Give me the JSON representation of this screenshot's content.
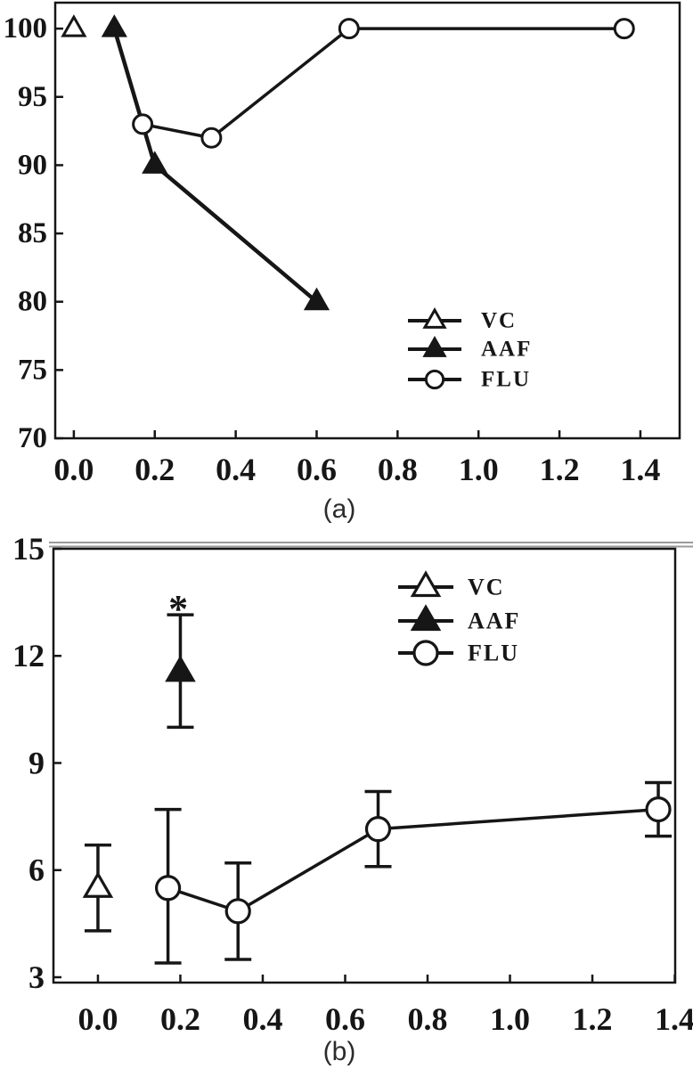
{
  "figure": {
    "description": "Two-panel dose-response line chart",
    "ink_color": "#161616",
    "background_color": "#ffffff",
    "panel_rule_color": "#9a9a9a"
  },
  "chart_data": [
    {
      "panel": "a",
      "caption": "(a)",
      "type": "line",
      "grid": false,
      "xlim": [
        -0.046,
        1.497
      ],
      "ylim": [
        70,
        101.9
      ],
      "x_tick_values": [
        0.0,
        0.2,
        0.4,
        0.6,
        0.8,
        1.0,
        1.2,
        1.4
      ],
      "x_tick_labels": [
        "0.0",
        "0.2",
        "0.4",
        "0.6",
        "0.8",
        "1.0",
        "1.2",
        "1.4"
      ],
      "y_tick_values": [
        70,
        75,
        80,
        85,
        90,
        95,
        100
      ],
      "y_tick_labels": [
        "70",
        "75",
        "80",
        "85",
        "90",
        "95",
        "100"
      ],
      "legend": {
        "position": "inside-right-middle",
        "entries": [
          "VC",
          "AAF",
          "FLU"
        ]
      },
      "series": [
        {
          "name": "VC",
          "marker": "triangle-open",
          "connect": false,
          "x": [
            0.0
          ],
          "y": [
            100
          ]
        },
        {
          "name": "AAF",
          "marker": "triangle-filled",
          "connect": true,
          "x": [
            0.1,
            0.2,
            0.6
          ],
          "y": [
            100,
            90,
            80
          ]
        },
        {
          "name": "FLU",
          "marker": "circle-open",
          "connect": true,
          "x": [
            0.17,
            0.34,
            0.68,
            1.36
          ],
          "y": [
            93,
            92,
            100,
            100
          ]
        }
      ],
      "annotations": []
    },
    {
      "panel": "b",
      "caption": "(b)",
      "type": "line",
      "grid": false,
      "xlim": [
        -0.108,
        1.401
      ],
      "ylim": [
        2.85,
        15.0
      ],
      "x_tick_values": [
        0.0,
        0.2,
        0.4,
        0.6,
        0.8,
        1.0,
        1.2,
        1.4
      ],
      "x_tick_labels": [
        "0.0",
        "0.2",
        "0.4",
        "0.6",
        "0.8",
        "1.0",
        "1.2",
        "1.4"
      ],
      "y_tick_values": [
        3,
        6,
        9,
        12,
        15
      ],
      "y_tick_labels": [
        "3",
        "6",
        "9",
        "12",
        "15"
      ],
      "legend": {
        "position": "inside-top-center",
        "entries": [
          "VC",
          "AAF",
          "FLU"
        ]
      },
      "series": [
        {
          "name": "VC",
          "marker": "triangle-open",
          "connect": false,
          "x": [
            0.0
          ],
          "y": [
            5.5
          ],
          "y_err_low": [
            4.3
          ],
          "y_err_high": [
            6.7
          ]
        },
        {
          "name": "AAF",
          "marker": "triangle-filled",
          "connect": false,
          "x": [
            0.2
          ],
          "y": [
            11.55
          ],
          "y_err_low": [
            10.0
          ],
          "y_err_high": [
            13.15
          ]
        },
        {
          "name": "FLU",
          "marker": "circle-open",
          "connect": true,
          "x": [
            0.17,
            0.34,
            0.68,
            1.36
          ],
          "y": [
            5.5,
            4.85,
            7.15,
            7.7
          ],
          "y_err_low": [
            3.4,
            3.5,
            6.1,
            6.95
          ],
          "y_err_high": [
            7.7,
            6.2,
            8.2,
            8.45
          ]
        }
      ],
      "annotations": [
        {
          "text": "*",
          "x": 0.195,
          "y": 13.55
        }
      ]
    }
  ]
}
